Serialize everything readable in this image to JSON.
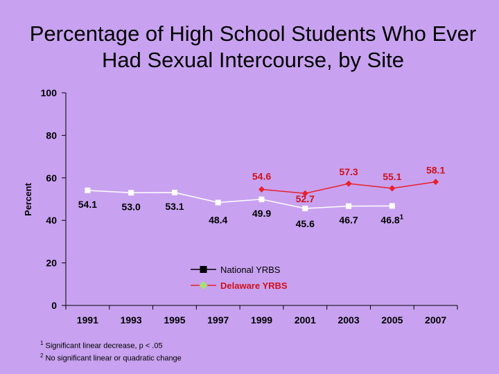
{
  "chart_data": {
    "type": "line",
    "title": "Percentage of High School Students Who Ever Had Sexual Intercourse, by Site",
    "ylabel": "Percent",
    "xlabel": "",
    "ylim": [
      0,
      100
    ],
    "yticks": [
      0,
      20,
      40,
      60,
      80,
      100
    ],
    "categories": [
      "1991",
      "1993",
      "1995",
      "1997",
      "1999",
      "2001",
      "2003",
      "2005",
      "2007"
    ],
    "series": [
      {
        "name": "National YRBS",
        "color": "#ffffff",
        "marker": "square",
        "values": [
          54.1,
          53.0,
          53.1,
          48.4,
          49.9,
          45.6,
          46.7,
          46.8,
          null
        ],
        "labels": [
          "54.1",
          "53.0",
          "53.1",
          "48.4",
          "49.9",
          "45.6",
          "46.7",
          "46.8",
          ""
        ],
        "label_sup": [
          "",
          "",
          "",
          "",
          "",
          "",
          "",
          "1",
          ""
        ]
      },
      {
        "name": "Delaware YRBS",
        "color": "#e8202a",
        "marker": "diamond",
        "values": [
          null,
          null,
          null,
          null,
          54.6,
          52.7,
          57.3,
          55.1,
          58.1
        ],
        "labels": [
          "",
          "",
          "",
          "",
          "54.6",
          "52.7",
          "57.3",
          "55.1",
          "58.1"
        ],
        "label_sup": [
          "",
          "",
          "",
          "",
          "",
          "",
          "",
          "",
          ""
        ]
      }
    ],
    "legend": "center"
  },
  "footnotes": [
    {
      "sup": "1",
      "text": " Significant linear decrease, p < .05"
    },
    {
      "sup": "2",
      "text": " No significant linear or quadratic change"
    }
  ]
}
